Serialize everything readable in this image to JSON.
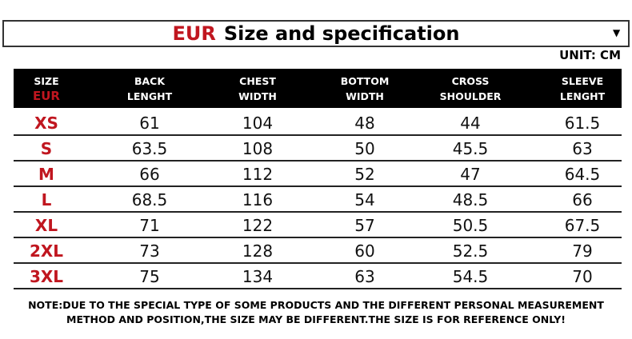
{
  "header": {
    "title_prefix": "EUR",
    "title": "Size and specification",
    "unit": "UNIT: CM"
  },
  "table": {
    "columns": [
      [
        "SIZE",
        "EUR"
      ],
      [
        "BACK",
        "LENGHT"
      ],
      [
        "CHEST",
        "WIDTH"
      ],
      [
        "BOTTOM",
        "WIDTH"
      ],
      [
        "CROSS",
        "SHOULDER"
      ],
      [
        "SLEEVE",
        "LENGHT"
      ]
    ],
    "rows": [
      [
        "XS",
        61,
        104,
        48,
        44,
        61.5
      ],
      [
        "S",
        63.5,
        108,
        50,
        45.5,
        63
      ],
      [
        "M",
        66,
        112,
        52,
        47,
        64.5
      ],
      [
        "L",
        68.5,
        116,
        54,
        48.5,
        66
      ],
      [
        "XL",
        71,
        122,
        57,
        50.5,
        67.5
      ],
      [
        "2XL",
        73,
        128,
        60,
        52.5,
        79
      ],
      [
        "3XL",
        75,
        134,
        63,
        54.5,
        70
      ]
    ]
  },
  "note": [
    "NOTE:DUE TO THE SPECIAL TYPE OF SOME PRODUCTS AND THE DIFFERENT PERSONAL MEASUREMENT",
    "METHOD AND POSITION,THE SIZE MAY BE DIFFERENT.THE SIZE IS FOR REFERENCE ONLY!"
  ]
}
